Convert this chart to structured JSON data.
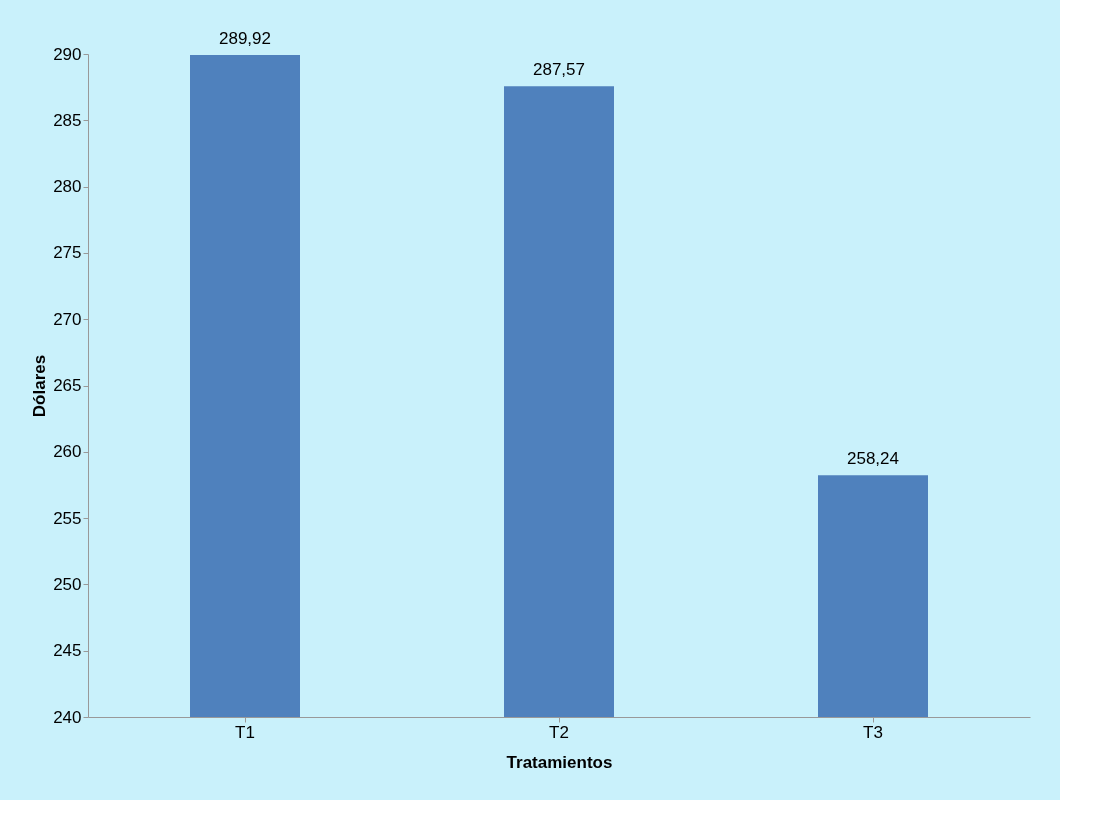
{
  "chart_data": {
    "type": "bar",
    "xlabel": "Tratamientos",
    "ylabel": "Dólares",
    "categories": [
      "T1",
      "T2",
      "T3"
    ],
    "values": [
      289.92,
      287.57,
      258.24
    ],
    "value_labels": [
      "289,92",
      "287,57",
      "258,24"
    ],
    "color": "#4f81bd",
    "ylim": [
      240,
      290
    ],
    "yticks": [
      240,
      245,
      250,
      255,
      260,
      265,
      270,
      275,
      280,
      285,
      290
    ],
    "grid": false
  }
}
